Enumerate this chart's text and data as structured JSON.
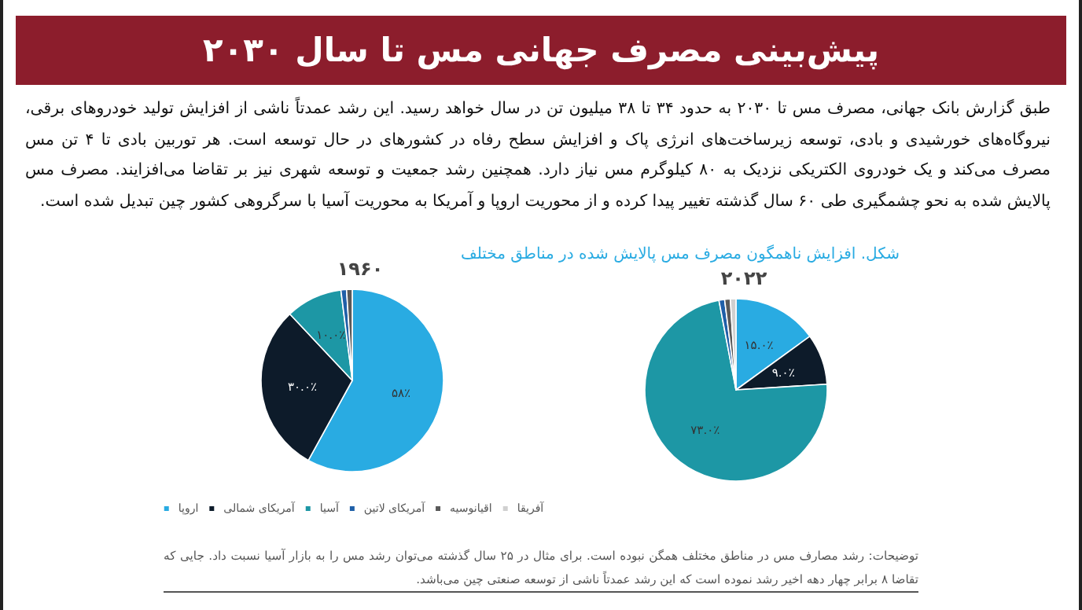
{
  "chart_data": [
    {
      "type": "other",
      "title": "پیش‌بینی مصرف جهانی مس تا سال ۲۰۳۰",
      "annotations": [
        "طبق گزارش بانک جهانی، مصرف مس تا ۲۰۳۰ به حدود ۳۴ تا ۳۸ میلیون تن در سال خواهد رسید. این رشد عمدتاً ناشی از افزایش تولید خودروهای برقی، نیروگاه‌های خورشیدی و بادی، توسعه زیرساخت‌های انرژی پاک و افزایش سطح رفاه در کشورهای در حال توسعه است. هر توربین بادی تا ۴ تن مس مصرف می‌کند و یک خودروی الکتریکی نزدیک به ۸۰ کیلوگرم مس نیاز دارد. همچنین رشد جمعیت و توسعه شهری نیز بر تقاضا می‌افزایند. مصرف مس پالایش شده به نحو چشمگیری طی ۶۰ سال گذشته تغییر پیدا کرده و از محوریت اروپا و آمریکا به محوریت آسیا با سرگروهی کشور چین تبدیل شده است.",
        "توضیحات: رشد مصارف مس در مناطق مختلف همگن نبوده است. برای مثال در ۲۵ سال گذشته می‌توان رشد مس را به بازار آسیا نسبت داد. جایی که تقاضا ۸ برابر چهار دهه اخیر رشد نموده است که این رشد عمدتاً ناشی از توسعه صنعتی چین می‌باشد."
      ]
    },
    {
      "type": "pie",
      "subtitle": "شکل. افزایش ناهمگون مصرف مس پالایش شده در مناطق مختلف",
      "title": "۲۰۲۲",
      "categories": [
        null,
        null,
        null,
        null,
        null,
        null
      ],
      "values": [
        15,
        9,
        73,
        1,
        1,
        1
      ],
      "colors": [
        "#29abe2",
        "#0d1b2a",
        "#1d97a5",
        "#1f5fa8",
        "#595959",
        "#d0d0d0"
      ],
      "value_labels": [
        "۱۵.۰٪",
        "۹.۰٪",
        "۷۳.۰٪",
        null,
        null,
        null
      ],
      "legend": false
    },
    {
      "type": "pie",
      "title": "۱۹۶۰",
      "categories": [
        "اروپا",
        "آمریکای شمالی",
        "آسیا",
        "آمریکای لاتین",
        "اقیانوسیه",
        "آفریقا"
      ],
      "values": [
        58,
        30,
        10,
        1,
        1,
        null
      ],
      "colors": [
        "#29abe2",
        "#0d1b2a",
        "#1d97a5",
        "#1f5fa8",
        "#595959",
        "#d0d0d0"
      ],
      "value_labels": [
        "۵۸٪",
        "۳۰.۰٪",
        "۱۰.۰٪",
        null,
        null,
        null
      ],
      "legend": "bottom"
    }
  ]
}
